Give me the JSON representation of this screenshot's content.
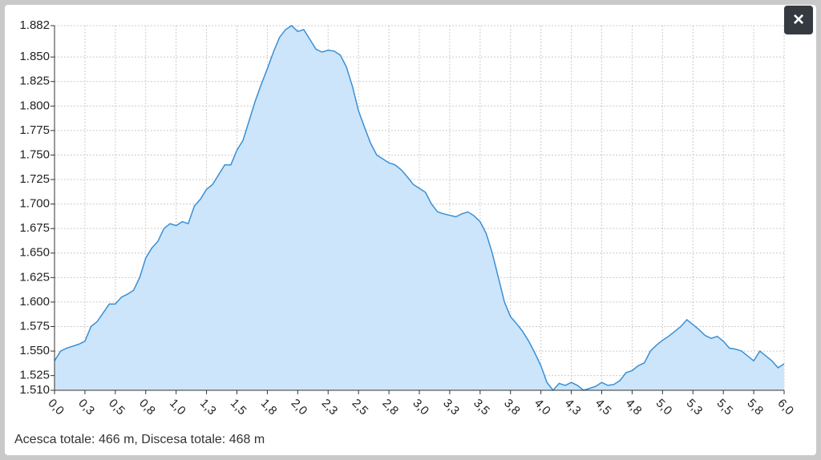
{
  "chart_data": {
    "type": "area",
    "x": [
      0,
      0.05,
      0.1,
      0.2,
      0.25,
      0.3,
      0.35,
      0.45,
      0.5,
      0.55,
      0.6,
      0.65,
      0.7,
      0.75,
      0.8,
      0.85,
      0.9,
      0.95,
      1.0,
      1.05,
      1.1,
      1.15,
      1.2,
      1.25,
      1.3,
      1.4,
      1.45,
      1.5,
      1.55,
      1.6,
      1.65,
      1.7,
      1.75,
      1.8,
      1.85,
      1.9,
      1.95,
      2.0,
      2.05,
      2.1,
      2.15,
      2.2,
      2.25,
      2.3,
      2.35,
      2.4,
      2.45,
      2.5,
      2.55,
      2.6,
      2.65,
      2.7,
      2.75,
      2.8,
      2.85,
      2.9,
      2.95,
      3.0,
      3.05,
      3.1,
      3.15,
      3.2,
      3.3,
      3.35,
      3.4,
      3.45,
      3.5,
      3.55,
      3.6,
      3.65,
      3.7,
      3.75,
      3.8,
      3.85,
      3.9,
      3.95,
      4.0,
      4.05,
      4.1,
      4.15,
      4.2,
      4.25,
      4.3,
      4.35,
      4.4,
      4.45,
      4.5,
      4.55,
      4.6,
      4.65,
      4.7,
      4.75,
      4.8,
      4.85,
      4.9,
      4.95,
      5.0,
      5.05,
      5.1,
      5.15,
      5.2,
      5.25,
      5.3,
      5.35,
      5.4,
      5.45,
      5.5,
      5.55,
      5.6,
      5.65,
      5.7,
      5.75,
      5.8,
      5.85,
      5.9,
      5.95,
      6.0
    ],
    "series": [
      {
        "color": "#3a8fd4",
        "values": [
          1540,
          1550,
          1553,
          1557,
          1560,
          1575,
          1580,
          1598,
          1598,
          1605,
          1608,
          1612,
          1625,
          1645,
          1655,
          1662,
          1675,
          1680,
          1678,
          1682,
          1680,
          1698,
          1705,
          1715,
          1720,
          1740,
          1740,
          1755,
          1765,
          1785,
          1805,
          1822,
          1838,
          1855,
          1870,
          1878,
          1882,
          1876,
          1878,
          1868,
          1858,
          1855,
          1857,
          1856,
          1852,
          1840,
          1820,
          1795,
          1778,
          1762,
          1750,
          1746,
          1742,
          1740,
          1735,
          1728,
          1720,
          1716,
          1712,
          1700,
          1692,
          1690,
          1687,
          1690,
          1692,
          1688,
          1682,
          1670,
          1650,
          1625,
          1600,
          1585,
          1578,
          1570,
          1560,
          1548,
          1535,
          1518,
          1510,
          1517,
          1515,
          1518,
          1515,
          1510,
          1512,
          1514,
          1518,
          1515,
          1516,
          1520,
          1528,
          1530,
          1535,
          1538,
          1550,
          1556,
          1561,
          1565,
          1570,
          1575,
          1582,
          1577,
          1572,
          1566,
          1563,
          1565,
          1560,
          1553,
          1552,
          1550,
          1545,
          1540,
          1550,
          1545,
          1540,
          1533,
          1537
        ]
      }
    ],
    "fill": "#cce5fb",
    "xlim": [
      0,
      6
    ],
    "ylim": [
      1510,
      1882
    ],
    "xticks": [
      {
        "value": 0,
        "label": "0,0"
      },
      {
        "value": 0.25,
        "label": "0,3"
      },
      {
        "value": 0.5,
        "label": "0,5"
      },
      {
        "value": 0.75,
        "label": "0,8"
      },
      {
        "value": 1,
        "label": "1,0"
      },
      {
        "value": 1.25,
        "label": "1,3"
      },
      {
        "value": 1.5,
        "label": "1,5"
      },
      {
        "value": 1.75,
        "label": "1,8"
      },
      {
        "value": 2,
        "label": "2,0"
      },
      {
        "value": 2.25,
        "label": "2,3"
      },
      {
        "value": 2.5,
        "label": "2,5"
      },
      {
        "value": 2.75,
        "label": "2,8"
      },
      {
        "value": 3,
        "label": "3,0"
      },
      {
        "value": 3.25,
        "label": "3,3"
      },
      {
        "value": 3.5,
        "label": "3,5"
      },
      {
        "value": 3.75,
        "label": "3,8"
      },
      {
        "value": 4,
        "label": "4,0"
      },
      {
        "value": 4.25,
        "label": "4,3"
      },
      {
        "value": 4.5,
        "label": "4,5"
      },
      {
        "value": 4.75,
        "label": "4,8"
      },
      {
        "value": 5,
        "label": "5,0"
      },
      {
        "value": 5.25,
        "label": "5,3"
      },
      {
        "value": 5.5,
        "label": "5,5"
      },
      {
        "value": 5.75,
        "label": "5,8"
      },
      {
        "value": 6,
        "label": "6,0"
      }
    ],
    "yticks": [
      {
        "value": 1510,
        "label": "1.510"
      },
      {
        "value": 1525,
        "label": "1.525"
      },
      {
        "value": 1550,
        "label": "1.550"
      },
      {
        "value": 1575,
        "label": "1.575"
      },
      {
        "value": 1600,
        "label": "1.600"
      },
      {
        "value": 1625,
        "label": "1.625"
      },
      {
        "value": 1650,
        "label": "1.650"
      },
      {
        "value": 1675,
        "label": "1.675"
      },
      {
        "value": 1700,
        "label": "1.700"
      },
      {
        "value": 1725,
        "label": "1.725"
      },
      {
        "value": 1750,
        "label": "1.750"
      },
      {
        "value": 1775,
        "label": "1.775"
      },
      {
        "value": 1800,
        "label": "1.800"
      },
      {
        "value": 1825,
        "label": "1.825"
      },
      {
        "value": 1850,
        "label": "1.850"
      },
      {
        "value": 1882,
        "label": "1.882"
      }
    ],
    "grid": true
  },
  "footer": "Acesca totale: 466 m, Discesa totale: 468 m",
  "close_button": "×"
}
